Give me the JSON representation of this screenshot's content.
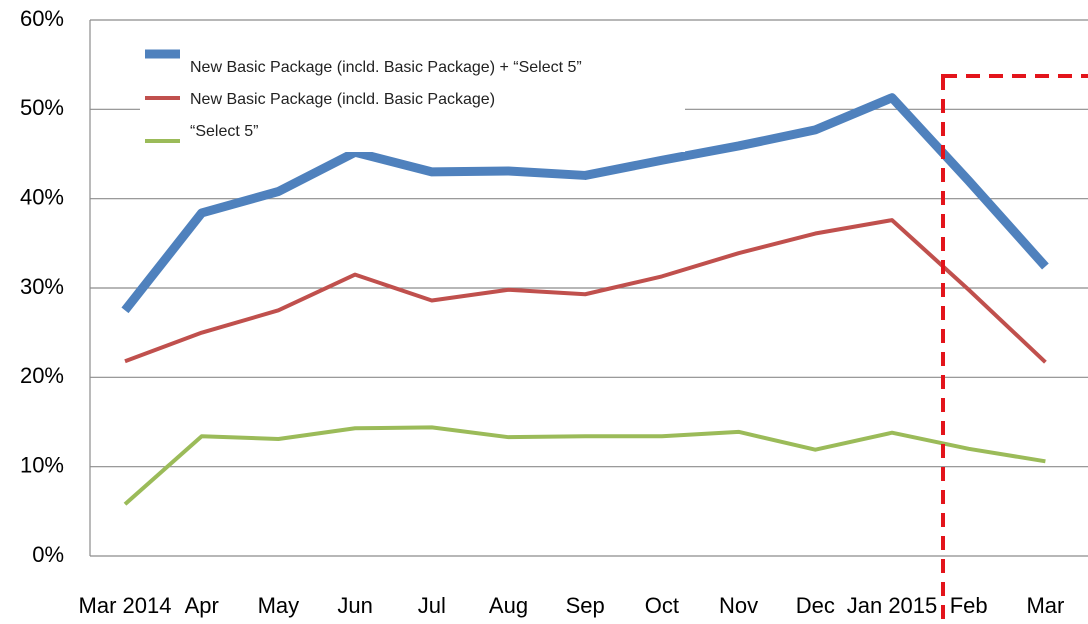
{
  "chart_data": {
    "type": "line",
    "categories": [
      "Mar 2014",
      "Apr",
      "May",
      "Jun",
      "Jul",
      "Aug",
      "Sep",
      "Oct",
      "Nov",
      "Dec",
      "Jan 2015",
      "Feb",
      "Mar"
    ],
    "series": [
      {
        "name": "New Basic Package (incld. Basic Package) + “Select 5”",
        "color": "#4f81bd",
        "values": [
          27.5,
          38.4,
          40.8,
          45.2,
          43.0,
          43.1,
          42.6,
          44.3,
          45.9,
          47.7,
          51.3,
          42.0,
          32.4
        ]
      },
      {
        "name": "New Basic Package (incld. Basic Package)",
        "color": "#c0504d",
        "values": [
          21.8,
          25.0,
          27.5,
          31.5,
          28.6,
          29.8,
          29.3,
          31.3,
          33.9,
          36.1,
          37.6,
          29.8,
          21.7
        ]
      },
      {
        "name": "“Select 5”",
        "color": "#9bbb59",
        "values": [
          5.8,
          13.4,
          13.1,
          14.3,
          14.4,
          13.3,
          13.4,
          13.4,
          13.9,
          11.9,
          13.8,
          12.0,
          10.6
        ]
      }
    ],
    "ylim": [
      0,
      60
    ],
    "yticks": [
      {
        "value": 0,
        "label": "0%"
      },
      {
        "value": 10,
        "label": "10%"
      },
      {
        "value": 20,
        "label": "20%"
      },
      {
        "value": 30,
        "label": "30%"
      },
      {
        "value": 40,
        "label": "40%"
      },
      {
        "value": 50,
        "label": "50%"
      },
      {
        "value": 60,
        "label": "60%"
      }
    ],
    "grid": true
  }
}
